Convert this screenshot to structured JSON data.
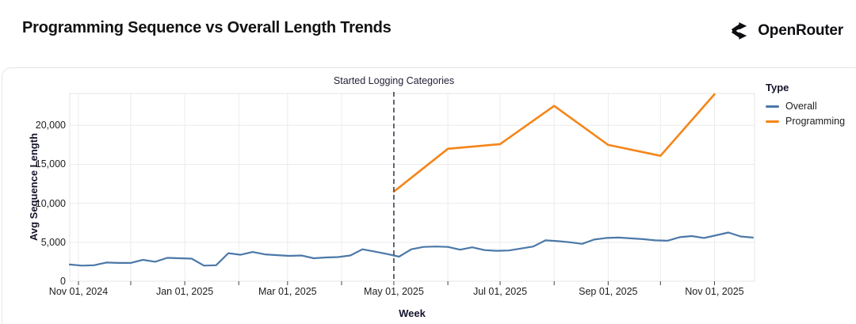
{
  "header": {
    "title": "Programming Sequence vs Overall Length Trends",
    "brand": "OpenRouter"
  },
  "legend": {
    "title": "Type",
    "items": [
      {
        "label": "Overall",
        "color": "#4c78a8"
      },
      {
        "label": "Programming",
        "color": "#f58518"
      }
    ]
  },
  "annotation": {
    "label": "Started Logging Categories",
    "date": "2025-05-01",
    "line_color": "#3b4356"
  },
  "colors": {
    "grid": "#ececec",
    "plot_border": "#e5e5e5",
    "tick": "#444444",
    "overall_line": "#4c78a8",
    "programming_line": "#f58518"
  },
  "chart_data": {
    "type": "line",
    "title": "Programming Sequence vs Overall Length Trends",
    "xlabel": "Week",
    "ylabel": "Avg Sequence Length",
    "grid": true,
    "legend_position": "right",
    "x_domain": [
      "2024-10-27",
      "2025-11-24"
    ],
    "y_domain": [
      0,
      24100
    ],
    "x_ticks": [
      {
        "date": "2024-11-01",
        "label": "Nov 01, 2024"
      },
      {
        "date": "2024-12-01",
        "label": ""
      },
      {
        "date": "2025-01-01",
        "label": "Jan 01, 2025"
      },
      {
        "date": "2025-02-01",
        "label": ""
      },
      {
        "date": "2025-03-01",
        "label": "Mar 01, 2025"
      },
      {
        "date": "2025-04-01",
        "label": ""
      },
      {
        "date": "2025-05-01",
        "label": "May 01, 2025"
      },
      {
        "date": "2025-06-01",
        "label": ""
      },
      {
        "date": "2025-07-01",
        "label": "Jul 01, 2025"
      },
      {
        "date": "2025-08-01",
        "label": ""
      },
      {
        "date": "2025-09-01",
        "label": "Sep 01, 2025"
      },
      {
        "date": "2025-10-01",
        "label": ""
      },
      {
        "date": "2025-11-01",
        "label": "Nov 01, 2025"
      }
    ],
    "y_ticks": [
      {
        "value": 0,
        "label": "0"
      },
      {
        "value": 5000,
        "label": "5,000"
      },
      {
        "value": 10000,
        "label": "10,000"
      },
      {
        "value": 15000,
        "label": "15,000"
      },
      {
        "value": 20000,
        "label": "20,000"
      }
    ],
    "series": [
      {
        "name": "Overall",
        "color": "#4c78a8",
        "points": [
          [
            "2024-10-27",
            2150
          ],
          [
            "2024-11-03",
            2000
          ],
          [
            "2024-11-10",
            2050
          ],
          [
            "2024-11-17",
            2400
          ],
          [
            "2024-11-24",
            2350
          ],
          [
            "2024-12-01",
            2350
          ],
          [
            "2024-12-08",
            2750
          ],
          [
            "2024-12-15",
            2500
          ],
          [
            "2024-12-22",
            3000
          ],
          [
            "2024-12-29",
            2950
          ],
          [
            "2025-01-05",
            2900
          ],
          [
            "2025-01-12",
            2000
          ],
          [
            "2025-01-19",
            2050
          ],
          [
            "2025-01-26",
            3600
          ],
          [
            "2025-02-02",
            3400
          ],
          [
            "2025-02-09",
            3750
          ],
          [
            "2025-02-16",
            3450
          ],
          [
            "2025-02-23",
            3350
          ],
          [
            "2025-03-02",
            3250
          ],
          [
            "2025-03-09",
            3300
          ],
          [
            "2025-03-16",
            2950
          ],
          [
            "2025-03-23",
            3050
          ],
          [
            "2025-03-30",
            3100
          ],
          [
            "2025-04-06",
            3300
          ],
          [
            "2025-04-13",
            4100
          ],
          [
            "2025-04-20",
            3800
          ],
          [
            "2025-04-27",
            3500
          ],
          [
            "2025-05-04",
            3150
          ],
          [
            "2025-05-11",
            4100
          ],
          [
            "2025-05-18",
            4400
          ],
          [
            "2025-05-25",
            4450
          ],
          [
            "2025-06-01",
            4400
          ],
          [
            "2025-06-08",
            4050
          ],
          [
            "2025-06-15",
            4350
          ],
          [
            "2025-06-22",
            4000
          ],
          [
            "2025-06-29",
            3900
          ],
          [
            "2025-07-06",
            3950
          ],
          [
            "2025-07-13",
            4200
          ],
          [
            "2025-07-20",
            4450
          ],
          [
            "2025-07-27",
            5250
          ],
          [
            "2025-08-03",
            5150
          ],
          [
            "2025-08-10",
            5000
          ],
          [
            "2025-08-17",
            4800
          ],
          [
            "2025-08-24",
            5350
          ],
          [
            "2025-08-31",
            5550
          ],
          [
            "2025-09-07",
            5600
          ],
          [
            "2025-09-14",
            5500
          ],
          [
            "2025-09-21",
            5400
          ],
          [
            "2025-09-28",
            5250
          ],
          [
            "2025-10-05",
            5200
          ],
          [
            "2025-10-12",
            5650
          ],
          [
            "2025-10-19",
            5800
          ],
          [
            "2025-10-26",
            5550
          ],
          [
            "2025-11-02",
            5900
          ],
          [
            "2025-11-09",
            6250
          ],
          [
            "2025-11-16",
            5750
          ],
          [
            "2025-11-23",
            5600
          ]
        ]
      },
      {
        "name": "Programming",
        "color": "#f58518",
        "points": [
          [
            "2025-05-01",
            11500
          ],
          [
            "2025-06-01",
            17000
          ],
          [
            "2025-07-01",
            17600
          ],
          [
            "2025-08-01",
            22500
          ],
          [
            "2025-09-01",
            17500
          ],
          [
            "2025-10-01",
            16100
          ],
          [
            "2025-11-01",
            24000
          ]
        ]
      }
    ]
  }
}
